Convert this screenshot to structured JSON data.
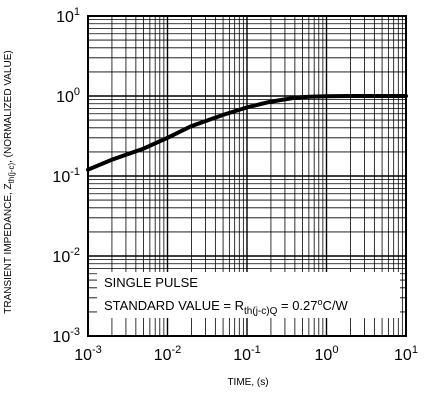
{
  "chart_data": {
    "type": "line",
    "x_scale": "log",
    "y_scale": "log",
    "xlim": [
      0.001,
      10
    ],
    "ylim": [
      0.001,
      10
    ],
    "grid": true,
    "xlabel": "TIME, (s)",
    "ylabel": "TRANSIENT  IMPEDANCE, Z",
    "ylabel_sub": "th(j-c)",
    "ylabel_suffix": ", (NORMALIZED VALUE)",
    "x_ticks": [
      {
        "base": "10",
        "exp": "-3"
      },
      {
        "base": "10",
        "exp": "-2"
      },
      {
        "base": "10",
        "exp": "-1"
      },
      {
        "base": "10",
        "exp": "0"
      },
      {
        "base": "10",
        "exp": "1"
      }
    ],
    "y_ticks": [
      {
        "base": "10",
        "exp": "-3"
      },
      {
        "base": "10",
        "exp": "-2"
      },
      {
        "base": "10",
        "exp": "-1"
      },
      {
        "base": "10",
        "exp": "0"
      },
      {
        "base": "10",
        "exp": "1"
      }
    ],
    "series": [
      {
        "x": [
          0.001,
          0.002,
          0.005,
          0.01,
          0.02,
          0.05,
          0.1,
          0.2,
          0.4,
          0.6,
          1,
          2,
          5,
          10
        ],
        "y": [
          0.12,
          0.16,
          0.22,
          0.3,
          0.42,
          0.58,
          0.72,
          0.85,
          0.95,
          0.98,
          0.99,
          1.0,
          1.0,
          1.0
        ]
      }
    ],
    "annotation": {
      "line1": "SINGLE PULSE",
      "line2_prefix": "STANDARD VALUE = R",
      "line2_sub": "th(j-c)Q",
      "line2_value": " = 0.27",
      "line2_sup": "o",
      "line2_unit": "C/W"
    }
  }
}
